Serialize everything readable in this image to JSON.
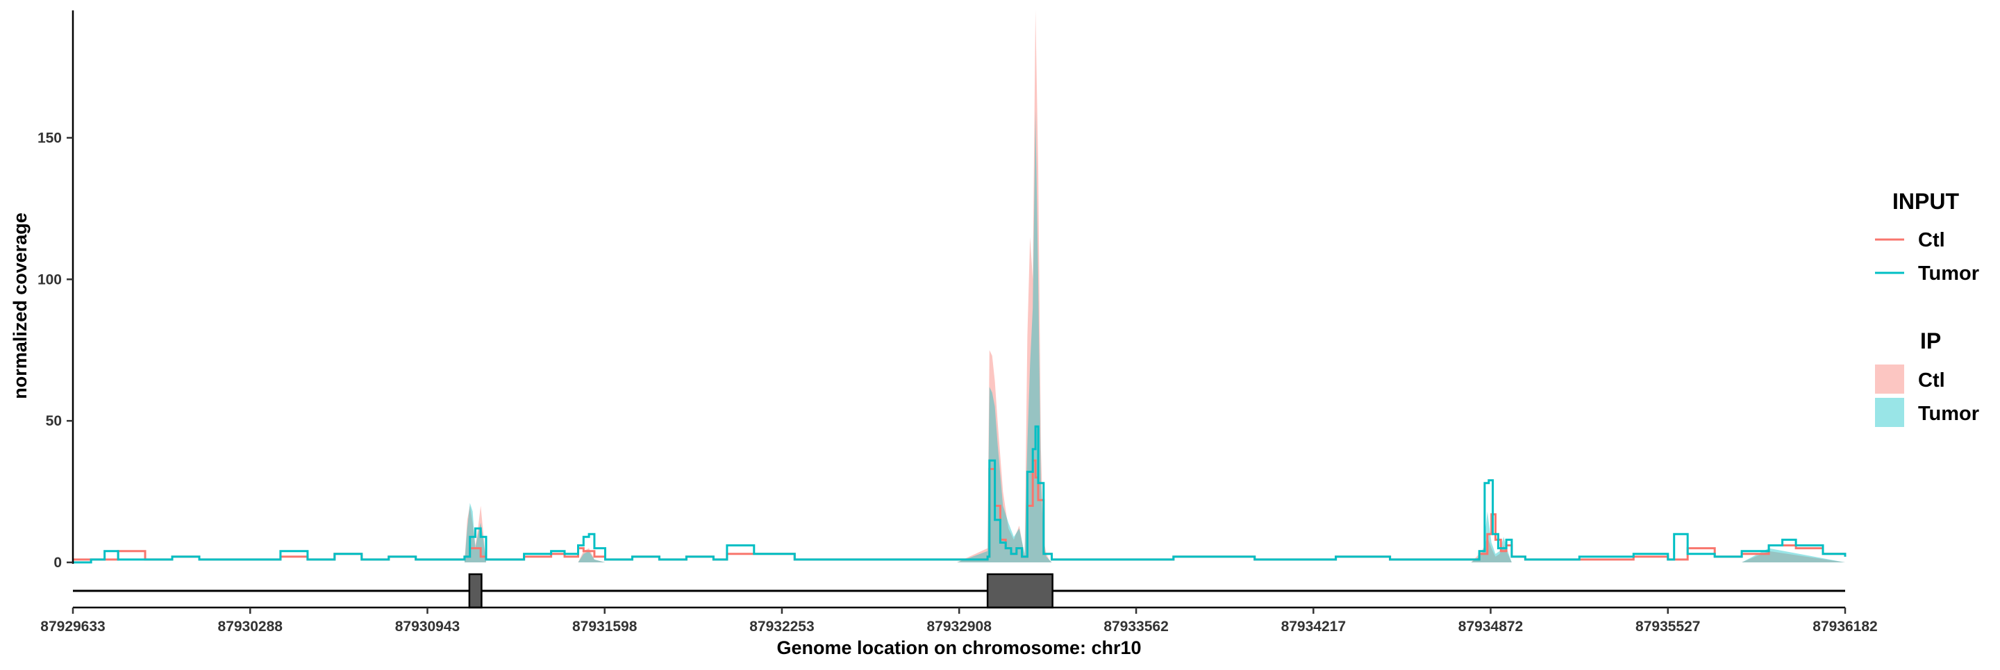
{
  "chart_data": {
    "type": "area",
    "title": "",
    "xlabel": "Genome location on chromosome: chr10",
    "ylabel": "normalized coverage",
    "xlim": [
      87929633,
      87936182
    ],
    "ylim": [
      0,
      195
    ],
    "y_ticks": [
      0,
      50,
      100,
      150
    ],
    "x_ticks": [
      87929633,
      87930288,
      87930943,
      87931598,
      87932253,
      87932908,
      87933562,
      87934217,
      87934872,
      87935527,
      87936182
    ],
    "grid": false,
    "legend_position": "right",
    "colors": {
      "ctl": "#F8766D",
      "tumor": "#00BFC4",
      "overlap": "#9AB8B4",
      "exon": "#595959"
    },
    "gene_model": {
      "line": [
        87929633,
        87936182
      ],
      "exons": [
        [
          87931098,
          87931143
        ],
        [
          87933013,
          87933253
        ]
      ]
    },
    "legend": {
      "input": {
        "title": "INPUT",
        "items": [
          "Ctl",
          "Tumor"
        ]
      },
      "ip": {
        "title": "IP",
        "items": [
          "Ctl",
          "Tumor"
        ]
      }
    },
    "series": [
      {
        "name": "Ctl",
        "group": "IP",
        "kind": "area",
        "x": [
          87929633,
          87930700,
          87931080,
          87931090,
          87931100,
          87931110,
          87931120,
          87931130,
          87931140,
          87931150,
          87931160,
          87931500,
          87931520,
          87931540,
          87931560,
          87931600,
          87932900,
          87933013,
          87933020,
          87933030,
          87933040,
          87933050,
          87933070,
          87933090,
          87933110,
          87933130,
          87933150,
          87933160,
          87933170,
          87933180,
          87933190,
          87933200,
          87933210,
          87933220,
          87933230,
          87933240,
          87933250,
          87933260,
          87933300,
          87934800,
          87934830,
          87934845,
          87934860,
          87934875,
          87934890,
          87934905,
          87934920,
          87934935,
          87934950,
          87935000,
          87935300,
          87935800,
          87935900,
          87936182
        ],
        "y": [
          0,
          0,
          0,
          15,
          20,
          14,
          6,
          12,
          20,
          10,
          0,
          0,
          4,
          5,
          1,
          0,
          0,
          5,
          75,
          73,
          64,
          50,
          25,
          12,
          8,
          13,
          2,
          80,
          115,
          100,
          195,
          140,
          40,
          8,
          3,
          1,
          0,
          0,
          0,
          0,
          3,
          5,
          9,
          5,
          2,
          3,
          6,
          3,
          0,
          0,
          0,
          0,
          4,
          0
        ]
      },
      {
        "name": "Tumor",
        "group": "IP",
        "kind": "area",
        "x": [
          87929633,
          87930700,
          87931080,
          87931090,
          87931100,
          87931110,
          87931120,
          87931130,
          87931140,
          87931150,
          87931160,
          87931500,
          87931520,
          87931540,
          87931560,
          87931600,
          87932900,
          87933013,
          87933020,
          87933030,
          87933040,
          87933050,
          87933070,
          87933090,
          87933110,
          87933130,
          87933150,
          87933160,
          87933170,
          87933180,
          87933190,
          87933200,
          87933210,
          87933220,
          87933230,
          87933240,
          87933250,
          87933260,
          87933300,
          87934800,
          87934830,
          87934845,
          87934860,
          87934875,
          87934890,
          87934905,
          87934920,
          87934935,
          87934950,
          87935000,
          87935300,
          87935800,
          87935900,
          87936182
        ],
        "y": [
          0,
          0,
          0,
          12,
          21,
          18,
          5,
          10,
          14,
          8,
          0,
          0,
          3,
          4,
          1,
          0,
          0,
          4,
          62,
          60,
          55,
          42,
          20,
          14,
          9,
          12,
          3,
          42,
          70,
          90,
          160,
          100,
          30,
          6,
          2,
          1,
          0,
          0,
          0,
          0,
          2,
          4,
          18,
          7,
          3,
          4,
          9,
          4,
          0,
          0,
          0,
          0,
          5,
          0
        ]
      },
      {
        "name": "Ctl",
        "group": "INPUT",
        "kind": "line",
        "x": [
          87929633,
          87929700,
          87929800,
          87929900,
          87930000,
          87930100,
          87930300,
          87930400,
          87930500,
          87930600,
          87930700,
          87930800,
          87930900,
          87931000,
          87931080,
          87931100,
          87931140,
          87931160,
          87931300,
          87931400,
          87931450,
          87931500,
          87931520,
          87931560,
          87931600,
          87931700,
          87931800,
          87931900,
          87932000,
          87932050,
          87932150,
          87932300,
          87932500,
          87932700,
          87932900,
          87933013,
          87933020,
          87933040,
          87933060,
          87933080,
          87933100,
          87933120,
          87933140,
          87933160,
          87933180,
          87933190,
          87933200,
          87933220,
          87933250,
          87933300,
          87933500,
          87933700,
          87934000,
          87934300,
          87934500,
          87934700,
          87934800,
          87934830,
          87934860,
          87934875,
          87934890,
          87934910,
          87934930,
          87934950,
          87935000,
          87935200,
          87935400,
          87935527,
          87935600,
          87935700,
          87935800,
          87935900,
          87936000,
          87936100,
          87936182
        ],
        "y": [
          1,
          1,
          4,
          1,
          2,
          1,
          1,
          2,
          1,
          3,
          1,
          2,
          1,
          1,
          2,
          5,
          2,
          1,
          2,
          3,
          2,
          5,
          4,
          2,
          1,
          2,
          1,
          2,
          1,
          3,
          3,
          1,
          1,
          1,
          1,
          2,
          33,
          20,
          8,
          5,
          3,
          5,
          2,
          20,
          36,
          30,
          22,
          3,
          1,
          1,
          1,
          2,
          1,
          2,
          1,
          1,
          1,
          3,
          10,
          17,
          8,
          4,
          6,
          2,
          1,
          1,
          2,
          1,
          5,
          2,
          3,
          6,
          5,
          3,
          2
        ]
      },
      {
        "name": "Tumor",
        "group": "INPUT",
        "kind": "line",
        "x": [
          87929633,
          87929700,
          87929750,
          87929800,
          87929900,
          87930000,
          87930100,
          87930300,
          87930400,
          87930500,
          87930600,
          87930700,
          87930800,
          87930900,
          87931000,
          87931080,
          87931100,
          87931120,
          87931140,
          87931160,
          87931300,
          87931400,
          87931450,
          87931500,
          87931520,
          87931540,
          87931560,
          87931600,
          87931700,
          87931800,
          87931900,
          87932000,
          87932050,
          87932150,
          87932300,
          87932500,
          87932700,
          87932900,
          87933013,
          87933020,
          87933040,
          87933060,
          87933080,
          87933100,
          87933120,
          87933140,
          87933160,
          87933180,
          87933190,
          87933200,
          87933220,
          87933250,
          87933300,
          87933500,
          87933700,
          87934000,
          87934300,
          87934500,
          87934700,
          87934800,
          87934830,
          87934850,
          87934865,
          87934880,
          87934900,
          87934930,
          87934950,
          87935000,
          87935200,
          87935400,
          87935527,
          87935550,
          87935600,
          87935700,
          87935800,
          87935900,
          87935950,
          87936000,
          87936100,
          87936182
        ],
        "y": [
          0,
          1,
          4,
          1,
          1,
          2,
          1,
          1,
          4,
          1,
          3,
          1,
          2,
          1,
          1,
          2,
          9,
          12,
          9,
          1,
          3,
          4,
          3,
          6,
          9,
          10,
          5,
          1,
          2,
          1,
          2,
          1,
          6,
          3,
          1,
          1,
          1,
          1,
          2,
          36,
          15,
          7,
          5,
          3,
          5,
          2,
          32,
          40,
          48,
          28,
          3,
          1,
          1,
          1,
          2,
          1,
          2,
          1,
          1,
          1,
          4,
          28,
          29,
          10,
          5,
          8,
          2,
          1,
          2,
          3,
          1,
          10,
          3,
          2,
          4,
          6,
          8,
          6,
          3,
          2
        ]
      }
    ]
  }
}
